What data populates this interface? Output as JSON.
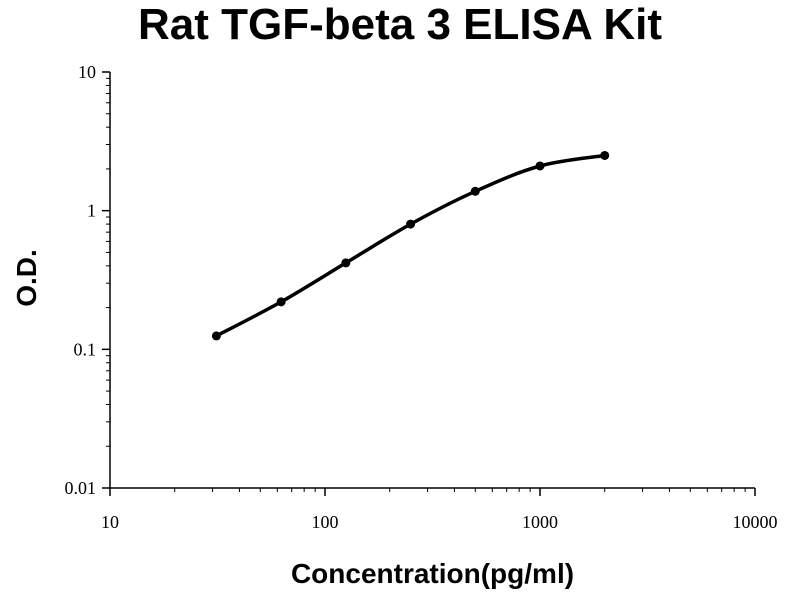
{
  "chart_data": {
    "type": "line",
    "title": "Rat TGF-beta 3 ELISA Kit",
    "xlabel": "Concentration(pg/ml)",
    "ylabel": "O.D.",
    "x_scale": "log",
    "y_scale": "log",
    "xlim": [
      10,
      10000
    ],
    "ylim": [
      0.01,
      10
    ],
    "x_ticks": [
      "10",
      "100",
      "1000",
      "10000"
    ],
    "y_ticks": [
      "0.01",
      "0.1",
      "1",
      "10"
    ],
    "grid": false,
    "legend": "none",
    "series": [
      {
        "x": [
          31.25,
          62.5,
          125,
          250,
          500,
          1000,
          2000
        ],
        "y": [
          0.125,
          0.22,
          0.42,
          0.8,
          1.38,
          2.1,
          2.5
        ]
      }
    ],
    "colors": {
      "line": "#000000",
      "axis": "#000000"
    }
  }
}
